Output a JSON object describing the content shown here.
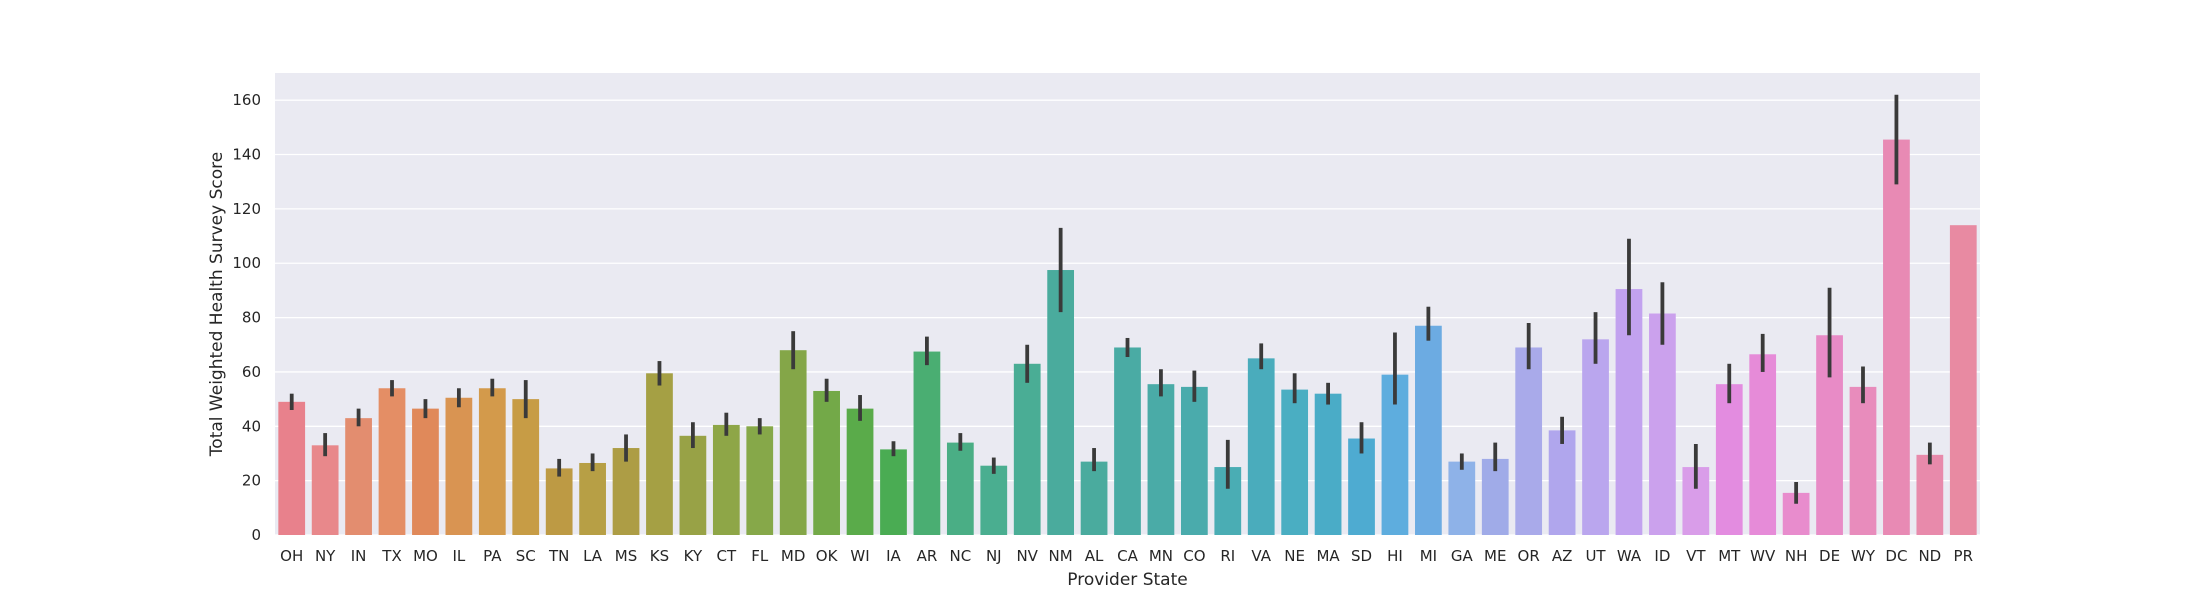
{
  "chart_data": {
    "type": "bar",
    "title": "",
    "xlabel": "Provider State",
    "ylabel": "Total Weighted Health Survey Score",
    "ylim": [
      0,
      170
    ],
    "yticks": [
      0,
      20,
      40,
      60,
      80,
      100,
      120,
      140,
      160
    ],
    "grid": true,
    "legend": "none",
    "error_bars": true,
    "background": "#eaeaf2",
    "gridline_color": "#ffffff",
    "error_bar_color": "#3a3a3a",
    "categories": [
      "OH",
      "NY",
      "IN",
      "TX",
      "MO",
      "IL",
      "PA",
      "SC",
      "TN",
      "LA",
      "MS",
      "KS",
      "KY",
      "CT",
      "FL",
      "MD",
      "OK",
      "WI",
      "IA",
      "AR",
      "NC",
      "NJ",
      "NV",
      "NM",
      "AL",
      "CA",
      "MN",
      "CO",
      "RI",
      "VA",
      "NE",
      "MA",
      "SD",
      "HI",
      "MI",
      "GA",
      "ME",
      "OR",
      "AZ",
      "UT",
      "WA",
      "ID",
      "VT",
      "MT",
      "WV",
      "NH",
      "DE",
      "WY",
      "DC",
      "ND",
      "PR"
    ],
    "values": [
      49,
      33,
      43,
      54,
      46.5,
      50.5,
      54,
      50,
      24.5,
      26.5,
      32,
      59.5,
      36.5,
      40.5,
      40,
      68,
      53,
      46.5,
      31.5,
      67.5,
      34,
      25.5,
      63,
      97.5,
      27,
      69,
      55.5,
      54.5,
      25,
      65,
      53.5,
      52,
      35.5,
      59,
      77,
      27,
      28,
      69,
      38.5,
      72,
      90.5,
      81.5,
      25,
      55.5,
      66.5,
      15.5,
      73.5,
      54.5,
      145.5,
      29.5,
      114
    ],
    "error_low": [
      46,
      29,
      40,
      51,
      43,
      47,
      51,
      43,
      21.5,
      23.5,
      27,
      55,
      32,
      36.5,
      37,
      61,
      49,
      42,
      29,
      62.5,
      31,
      22.5,
      56,
      82,
      23.5,
      65.5,
      51,
      49,
      17,
      61,
      48.5,
      48,
      30,
      48,
      71.5,
      24,
      23.5,
      61,
      33.5,
      63,
      73.5,
      70,
      17,
      48.5,
      60,
      11.5,
      58,
      48.5,
      129,
      26,
      114
    ],
    "error_high": [
      52,
      37.5,
      46.5,
      57,
      50,
      54,
      57.5,
      57,
      28,
      30,
      37,
      64,
      41.5,
      45,
      43,
      75,
      57.5,
      51.5,
      34.5,
      73,
      37.5,
      28.5,
      70,
      113,
      32,
      72.5,
      61,
      60.5,
      35,
      70.5,
      59.5,
      56,
      41.5,
      74.5,
      84,
      30,
      34,
      78,
      43.5,
      82,
      109,
      93,
      33.5,
      63,
      74,
      19.5,
      91,
      62,
      162,
      34,
      114
    ],
    "colors": [
      "#e8818c",
      "#e8888b",
      "#e38d6f",
      "#e48e65",
      "#e0895a",
      "#d99452",
      "#d39a4b",
      "#c79c45",
      "#bd9a44",
      "#b79f45",
      "#ad9d45",
      "#a5a044",
      "#98a246",
      "#8ea647",
      "#86a849",
      "#84a648",
      "#73a948",
      "#5aab4a",
      "#4aac53",
      "#4aae72",
      "#4aae85",
      "#4aae90",
      "#4aad95",
      "#4aab9d",
      "#4aab9e",
      "#4aaba4",
      "#4aaba7",
      "#4aabac",
      "#4aadb4",
      "#4aacbc",
      "#4aaec2",
      "#4aacc7",
      "#4eabd1",
      "#5eadde",
      "#6cabe2",
      "#8eb2e8",
      "#a0abe8",
      "#a9aaea",
      "#b0a6ed",
      "#baa6ee",
      "#c2a2ef",
      "#cba1ed",
      "#d99de9",
      "#e38ce0",
      "#e68bd8",
      "#e88ccd",
      "#e88bc6",
      "#e88cbc",
      "#e88ab4",
      "#e88aab",
      "#e88aa2"
    ]
  }
}
